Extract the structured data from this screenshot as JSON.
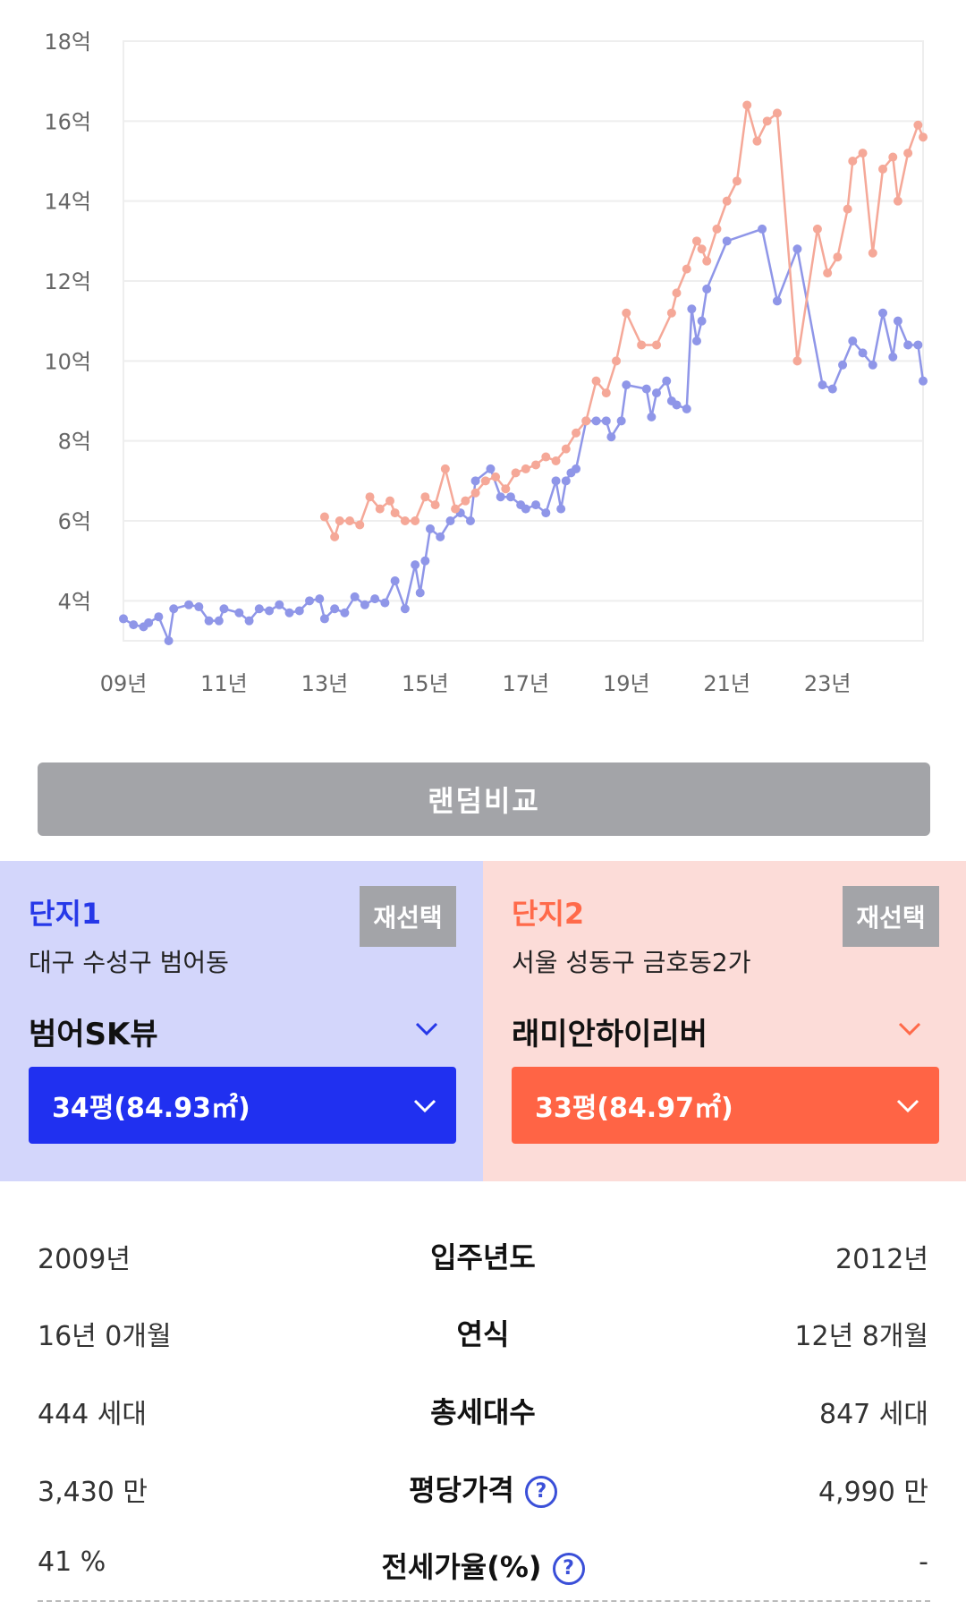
{
  "chart_data": {
    "type": "line",
    "y_ticks": [
      "4억",
      "6억",
      "8억",
      "10억",
      "12억",
      "14억",
      "16억",
      "18억"
    ],
    "y_tick_values": [
      4,
      6,
      8,
      10,
      12,
      14,
      16,
      18
    ],
    "x_ticks": [
      "09년",
      "11년",
      "13년",
      "15년",
      "17년",
      "19년",
      "21년",
      "23년"
    ],
    "x_tick_values": [
      2009,
      2011,
      2013,
      2015,
      2017,
      2019,
      2021,
      2023
    ],
    "xlim": [
      2009,
      2024.9
    ],
    "ylim": [
      3,
      18
    ],
    "grid": true,
    "series": [
      {
        "color": "#8f96e8",
        "points": [
          [
            2009.0,
            3.55
          ],
          [
            2009.2,
            3.4
          ],
          [
            2009.4,
            3.35
          ],
          [
            2009.5,
            3.45
          ],
          [
            2009.7,
            3.6
          ],
          [
            2009.9,
            2.9
          ],
          [
            2010.0,
            3.8
          ],
          [
            2010.3,
            3.9
          ],
          [
            2010.5,
            3.85
          ],
          [
            2010.7,
            3.5
          ],
          [
            2010.9,
            3.5
          ],
          [
            2011.0,
            3.8
          ],
          [
            2011.3,
            3.7
          ],
          [
            2011.5,
            3.5
          ],
          [
            2011.7,
            3.8
          ],
          [
            2011.9,
            3.75
          ],
          [
            2012.1,
            3.9
          ],
          [
            2012.3,
            3.7
          ],
          [
            2012.5,
            3.75
          ],
          [
            2012.7,
            4.0
          ],
          [
            2012.9,
            4.05
          ],
          [
            2013.0,
            3.55
          ],
          [
            2013.2,
            3.8
          ],
          [
            2013.4,
            3.7
          ],
          [
            2013.6,
            4.1
          ],
          [
            2013.8,
            3.9
          ],
          [
            2014.0,
            4.05
          ],
          [
            2014.2,
            3.95
          ],
          [
            2014.4,
            4.5
          ],
          [
            2014.6,
            3.8
          ],
          [
            2014.8,
            4.9
          ],
          [
            2014.9,
            4.2
          ],
          [
            2015.0,
            5.0
          ],
          [
            2015.1,
            5.8
          ],
          [
            2015.3,
            5.6
          ],
          [
            2015.5,
            6.0
          ],
          [
            2015.7,
            6.2
          ],
          [
            2015.9,
            6.0
          ],
          [
            2016.0,
            7.0
          ],
          [
            2016.3,
            7.3
          ],
          [
            2016.5,
            6.6
          ],
          [
            2016.7,
            6.6
          ],
          [
            2016.9,
            6.4
          ],
          [
            2017.0,
            6.3
          ],
          [
            2017.2,
            6.4
          ],
          [
            2017.4,
            6.2
          ],
          [
            2017.6,
            7.0
          ],
          [
            2017.7,
            6.3
          ],
          [
            2017.8,
            7.0
          ],
          [
            2017.9,
            7.2
          ],
          [
            2018.0,
            7.3
          ],
          [
            2018.2,
            8.5
          ],
          [
            2018.4,
            8.5
          ],
          [
            2018.6,
            8.5
          ],
          [
            2018.7,
            8.1
          ],
          [
            2018.9,
            8.5
          ],
          [
            2019.0,
            9.4
          ],
          [
            2019.4,
            9.3
          ],
          [
            2019.5,
            8.6
          ],
          [
            2019.6,
            9.2
          ],
          [
            2019.8,
            9.5
          ],
          [
            2019.9,
            9.0
          ],
          [
            2020.0,
            8.9
          ],
          [
            2020.2,
            8.8
          ],
          [
            2020.3,
            11.3
          ],
          [
            2020.4,
            10.5
          ],
          [
            2020.5,
            11.0
          ],
          [
            2020.6,
            11.8
          ],
          [
            2021.0,
            13.0
          ],
          [
            2021.7,
            13.3
          ],
          [
            2022.0,
            11.5
          ],
          [
            2022.4,
            12.8
          ],
          [
            2022.9,
            9.4
          ],
          [
            2023.1,
            9.3
          ],
          [
            2023.3,
            9.9
          ],
          [
            2023.5,
            10.5
          ],
          [
            2023.7,
            10.2
          ],
          [
            2023.9,
            9.9
          ],
          [
            2024.1,
            11.2
          ],
          [
            2024.3,
            10.1
          ],
          [
            2024.4,
            11.0
          ],
          [
            2024.6,
            10.4
          ],
          [
            2024.8,
            10.4
          ],
          [
            2024.9,
            9.5
          ]
        ]
      },
      {
        "color": "#f5a898",
        "points": [
          [
            2013.0,
            6.1
          ],
          [
            2013.2,
            5.6
          ],
          [
            2013.3,
            6.0
          ],
          [
            2013.5,
            6.0
          ],
          [
            2013.7,
            5.9
          ],
          [
            2013.9,
            6.6
          ],
          [
            2014.1,
            6.3
          ],
          [
            2014.3,
            6.5
          ],
          [
            2014.4,
            6.2
          ],
          [
            2014.6,
            6.0
          ],
          [
            2014.8,
            6.0
          ],
          [
            2015.0,
            6.6
          ],
          [
            2015.2,
            6.4
          ],
          [
            2015.4,
            7.3
          ],
          [
            2015.6,
            6.3
          ],
          [
            2015.8,
            6.5
          ],
          [
            2016.0,
            6.7
          ],
          [
            2016.2,
            7.0
          ],
          [
            2016.4,
            7.1
          ],
          [
            2016.6,
            6.8
          ],
          [
            2016.8,
            7.2
          ],
          [
            2017.0,
            7.3
          ],
          [
            2017.2,
            7.4
          ],
          [
            2017.4,
            7.6
          ],
          [
            2017.6,
            7.5
          ],
          [
            2017.8,
            7.8
          ],
          [
            2018.0,
            8.2
          ],
          [
            2018.2,
            8.5
          ],
          [
            2018.4,
            9.5
          ],
          [
            2018.6,
            9.2
          ],
          [
            2018.8,
            10.0
          ],
          [
            2019.0,
            11.2
          ],
          [
            2019.3,
            10.4
          ],
          [
            2019.6,
            10.4
          ],
          [
            2019.9,
            11.2
          ],
          [
            2020.0,
            11.7
          ],
          [
            2020.2,
            12.3
          ],
          [
            2020.4,
            13.0
          ],
          [
            2020.5,
            12.8
          ],
          [
            2020.6,
            12.5
          ],
          [
            2020.8,
            13.3
          ],
          [
            2021.0,
            14.0
          ],
          [
            2021.2,
            14.5
          ],
          [
            2021.4,
            16.4
          ],
          [
            2021.6,
            15.5
          ],
          [
            2021.8,
            16.0
          ],
          [
            2022.0,
            16.2
          ],
          [
            2022.4,
            10.0
          ],
          [
            2022.8,
            13.3
          ],
          [
            2023.0,
            12.2
          ],
          [
            2023.2,
            12.6
          ],
          [
            2023.4,
            13.8
          ],
          [
            2023.5,
            15.0
          ],
          [
            2023.7,
            15.2
          ],
          [
            2023.9,
            12.7
          ],
          [
            2024.1,
            14.8
          ],
          [
            2024.3,
            15.1
          ],
          [
            2024.4,
            14.0
          ],
          [
            2024.6,
            15.2
          ],
          [
            2024.8,
            15.9
          ],
          [
            2024.9,
            15.6
          ]
        ]
      }
    ]
  },
  "random_button": "랜덤비교",
  "complex1": {
    "title": "단지1",
    "reselect": "재선택",
    "region": "대구 수성구 범어동",
    "name": "범어SK뷰",
    "size": "34평(84.93㎡)"
  },
  "complex2": {
    "title": "단지2",
    "reselect": "재선택",
    "region": "서울 성동구 금호동2가",
    "name": "래미안하이리버",
    "size": "33평(84.97㎡)"
  },
  "rows": [
    {
      "label": "입주년도",
      "left": "2009년",
      "right": "2012년",
      "help": false
    },
    {
      "label": "연식",
      "left": "16년 0개월",
      "right": "12년 8개월",
      "help": false
    },
    {
      "label": "총세대수",
      "left": "444 세대",
      "right": "847 세대",
      "help": false
    },
    {
      "label": "평당가격",
      "left": "3,430 만",
      "right": "4,990 만",
      "help": true
    },
    {
      "label": "전세가율(%)",
      "left": "41 %",
      "right": "-",
      "help": true
    }
  ],
  "help_symbol": "?"
}
